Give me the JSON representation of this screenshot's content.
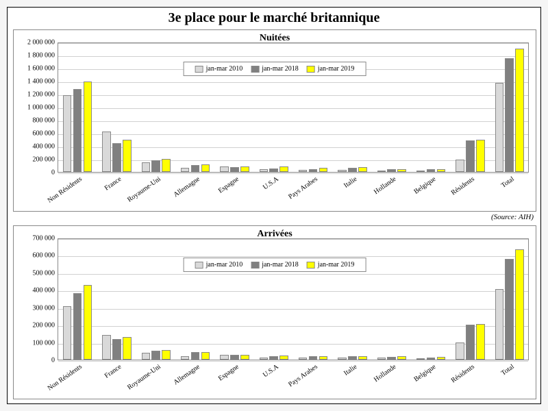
{
  "title": "3e place pour le marché britannique",
  "source": "(Source: AIH)",
  "series": [
    {
      "label": "jan-mar 2010",
      "color": "#d9d9d9"
    },
    {
      "label": "jan-mar 2018",
      "color": "#808080"
    },
    {
      "label": "jan-mar 2019",
      "color": "#ffff00"
    }
  ],
  "categories": [
    "Non Résidents",
    "France",
    "Royaume-Uni",
    "Allemagne",
    "Espagne",
    "U.S.A",
    "Pays Arabes",
    "Italie",
    "Hollande",
    "Belgique",
    "Résidents",
    "Total"
  ],
  "top_panel": {
    "title": "Nuitées",
    "ymax": 2000000,
    "ytick_step": 200000,
    "data": {
      "jan-mar 2010": [
        1180000,
        620000,
        150000,
        60000,
        80000,
        40000,
        30000,
        30000,
        25000,
        20000,
        190000,
        1370000
      ],
      "jan-mar 2018": [
        1270000,
        440000,
        180000,
        110000,
        70000,
        50000,
        40000,
        60000,
        40000,
        40000,
        480000,
        1750000
      ],
      "jan-mar 2019": [
        1390000,
        500000,
        200000,
        120000,
        80000,
        80000,
        60000,
        70000,
        45000,
        45000,
        500000,
        1890000
      ]
    }
  },
  "bottom_panel": {
    "title": "Arrivées",
    "ymax": 700000,
    "ytick_step": 100000,
    "data": {
      "jan-mar 2010": [
        305000,
        140000,
        40000,
        20000,
        28000,
        12000,
        10000,
        12000,
        10000,
        8000,
        100000,
        405000
      ],
      "jan-mar 2018": [
        380000,
        120000,
        50000,
        42000,
        28000,
        18000,
        18000,
        18000,
        14000,
        12000,
        200000,
        580000
      ],
      "jan-mar 2019": [
        430000,
        130000,
        55000,
        42000,
        28000,
        24000,
        20000,
        18000,
        18000,
        14000,
        205000,
        635000
      ]
    }
  },
  "style": {
    "bar_border": "#888888",
    "grid_color": "#d0d0d0",
    "panel_border": "#888888",
    "bg": "#ffffff",
    "title_font": "Times New Roman",
    "title_fontsize": 20,
    "panel_title_fontsize": 14,
    "tick_fontsize": 10
  }
}
